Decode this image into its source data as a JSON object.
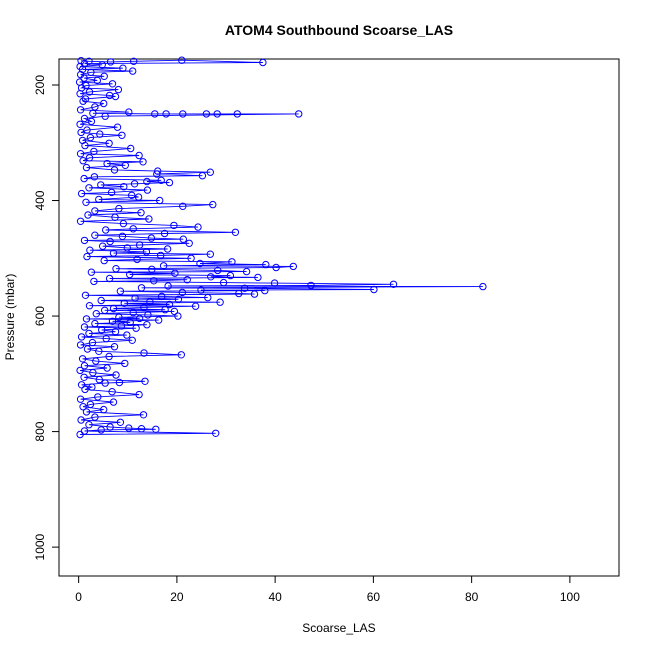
{
  "chart_data": {
    "type": "line",
    "title": "ATOM4 Southbound Scoarse_LAS",
    "xlabel": "Scoarse_LAS",
    "ylabel": "Pressure (mbar)",
    "xlim": [
      -4,
      110
    ],
    "ylim": [
      1050,
      155
    ],
    "y_reversed": true,
    "x_ticks": [
      0,
      20,
      40,
      60,
      80,
      100
    ],
    "y_ticks": [
      200,
      400,
      600,
      800,
      1000
    ],
    "grid": false,
    "legend": "none",
    "series": [
      {
        "style": "points-and-lines",
        "marker": "open-circle",
        "color": "#0000ff",
        "points": [
          [
            0.5,
            158
          ],
          [
            2.1,
            159
          ],
          [
            6.5,
            160
          ],
          [
            11.2,
            159
          ],
          [
            21,
            157
          ],
          [
            37.5,
            161
          ],
          [
            1.2,
            163
          ],
          [
            4.8,
            165
          ],
          [
            0.3,
            168
          ],
          [
            9,
            171
          ],
          [
            0.8,
            173
          ],
          [
            11,
            176
          ],
          [
            2.5,
            178
          ],
          [
            0.4,
            182
          ],
          [
            5.2,
            185
          ],
          [
            1.1,
            188
          ],
          [
            3.8,
            192
          ],
          [
            0.2,
            195
          ],
          [
            6.9,
            198
          ],
          [
            1.5,
            201
          ],
          [
            0.6,
            205
          ],
          [
            8.1,
            208
          ],
          [
            2.2,
            212
          ],
          [
            0.3,
            215
          ],
          [
            6.3,
            218
          ],
          [
            7.5,
            220
          ],
          [
            1.4,
            224
          ],
          [
            0.9,
            228
          ],
          [
            5.1,
            232
          ],
          [
            3.3,
            238
          ],
          [
            0.4,
            243
          ],
          [
            10.2,
            247
          ],
          [
            2.9,
            249
          ],
          [
            15.5,
            250
          ],
          [
            17.8,
            250
          ],
          [
            21.2,
            250
          ],
          [
            26,
            250
          ],
          [
            28.2,
            250
          ],
          [
            32.3,
            250
          ],
          [
            44.8,
            250
          ],
          [
            5.4,
            254
          ],
          [
            1.2,
            258
          ],
          [
            2.6,
            263
          ],
          [
            0.3,
            268
          ],
          [
            7.9,
            273
          ],
          [
            1.7,
            278
          ],
          [
            0.5,
            282
          ],
          [
            4.3,
            285
          ],
          [
            8.8,
            287
          ],
          [
            2.4,
            291
          ],
          [
            0.8,
            296
          ],
          [
            6.2,
            301
          ],
          [
            1.3,
            305
          ],
          [
            10.6,
            310
          ],
          [
            3.1,
            315
          ],
          [
            0.4,
            319
          ],
          [
            12.3,
            322
          ],
          [
            2.2,
            326
          ],
          [
            0.9,
            331
          ],
          [
            13.1,
            333
          ],
          [
            5.8,
            336
          ],
          [
            9.5,
            339
          ],
          [
            1.6,
            343
          ],
          [
            7.3,
            347
          ],
          [
            16.1,
            349
          ],
          [
            26.8,
            351
          ],
          [
            15.9,
            354
          ],
          [
            25.2,
            357
          ],
          [
            3.2,
            359
          ],
          [
            1.1,
            362
          ],
          [
            16.8,
            365
          ],
          [
            13.9,
            367
          ],
          [
            18.5,
            369
          ],
          [
            11.4,
            371
          ],
          [
            4.5,
            373
          ],
          [
            9.2,
            376
          ],
          [
            2.1,
            378
          ],
          [
            14,
            382
          ],
          [
            6.7,
            386
          ],
          [
            0.6,
            388
          ],
          [
            10.8,
            391
          ],
          [
            12.2,
            394
          ],
          [
            4.1,
            398
          ],
          [
            16.5,
            400
          ],
          [
            1.5,
            403
          ],
          [
            27.3,
            407
          ],
          [
            21.2,
            410
          ],
          [
            8.2,
            414
          ],
          [
            3.3,
            418
          ],
          [
            12.7,
            421
          ],
          [
            1.9,
            425
          ],
          [
            7.4,
            429
          ],
          [
            14.3,
            432
          ],
          [
            0.4,
            436
          ],
          [
            9.1,
            440
          ],
          [
            19.4,
            443
          ],
          [
            24.3,
            446
          ],
          [
            11.1,
            449
          ],
          [
            5.5,
            451
          ],
          [
            31.9,
            455
          ],
          [
            17.5,
            457
          ],
          [
            3.3,
            460
          ],
          [
            8.9,
            462
          ],
          [
            14.8,
            465
          ],
          [
            21.3,
            467
          ],
          [
            1.2,
            469
          ],
          [
            6.4,
            471
          ],
          [
            22.5,
            474
          ],
          [
            12.4,
            477
          ],
          [
            4.9,
            479
          ],
          [
            9.9,
            482
          ],
          [
            18.1,
            484
          ],
          [
            2.3,
            486
          ],
          [
            13.8,
            489
          ],
          [
            7.1,
            491
          ],
          [
            26.8,
            493
          ],
          [
            16.7,
            495
          ],
          [
            1.7,
            497
          ],
          [
            22.9,
            500
          ],
          [
            11.9,
            502
          ],
          [
            5.2,
            504
          ],
          [
            31.2,
            506
          ],
          [
            24.7,
            509
          ],
          [
            38.1,
            511
          ],
          [
            17.3,
            513
          ],
          [
            43.7,
            514
          ],
          [
            40.2,
            516
          ],
          [
            7.6,
            518
          ],
          [
            14.9,
            519
          ],
          [
            28.3,
            521
          ],
          [
            34.2,
            523
          ],
          [
            2.6,
            524
          ],
          [
            19.6,
            526
          ],
          [
            10.4,
            528
          ],
          [
            30.9,
            530
          ],
          [
            26.9,
            532
          ],
          [
            36.5,
            533
          ],
          [
            6.3,
            535
          ],
          [
            22.1,
            537
          ],
          [
            15.3,
            539
          ],
          [
            3.1,
            540
          ],
          [
            29.5,
            542
          ],
          [
            39.9,
            543
          ],
          [
            64.1,
            545
          ],
          [
            47.3,
            547
          ],
          [
            18.2,
            548
          ],
          [
            82.3,
            549
          ],
          [
            12.8,
            551
          ],
          [
            33.8,
            552
          ],
          [
            60.1,
            554
          ],
          [
            24.9,
            555
          ],
          [
            37.9,
            556
          ],
          [
            8.5,
            557
          ],
          [
            21.1,
            559
          ],
          [
            32.6,
            561
          ],
          [
            35.8,
            562
          ],
          [
            1.4,
            564
          ],
          [
            16.9,
            566
          ],
          [
            26.3,
            568
          ],
          [
            11.5,
            569
          ],
          [
            20.3,
            571
          ],
          [
            4.6,
            573
          ],
          [
            14.5,
            575
          ],
          [
            28.8,
            576
          ],
          [
            9.3,
            578
          ],
          [
            18.5,
            580
          ],
          [
            2.2,
            582
          ],
          [
            23.8,
            583
          ],
          [
            13.3,
            585
          ],
          [
            7.1,
            587
          ],
          [
            17.6,
            589
          ],
          [
            5.3,
            590
          ],
          [
            19.5,
            592
          ],
          [
            11.1,
            594
          ],
          [
            3.6,
            596
          ],
          [
            14.1,
            598
          ],
          [
            20.2,
            600
          ],
          [
            8.2,
            602
          ],
          [
            12.4,
            604
          ],
          [
            1.6,
            605
          ],
          [
            16.3,
            607
          ],
          [
            6.9,
            609
          ],
          [
            10.5,
            611
          ],
          [
            3.3,
            613
          ],
          [
            13.9,
            615
          ],
          [
            8.7,
            617
          ],
          [
            1.2,
            619
          ],
          [
            11.7,
            621
          ],
          [
            4.7,
            624
          ],
          [
            7.5,
            627
          ],
          [
            2.1,
            630
          ],
          [
            9.8,
            633
          ],
          [
            0.6,
            636
          ],
          [
            5.6,
            639
          ],
          [
            10.9,
            642
          ],
          [
            2.8,
            646
          ],
          [
            0.4,
            650
          ],
          [
            7.3,
            653
          ],
          [
            1.8,
            657
          ],
          [
            4.1,
            661
          ],
          [
            13.3,
            664
          ],
          [
            20.9,
            667
          ],
          [
            6.2,
            670
          ],
          [
            0.8,
            674
          ],
          [
            3.5,
            678
          ],
          [
            9.4,
            682
          ],
          [
            1.2,
            686
          ],
          [
            5.8,
            690
          ],
          [
            0.3,
            694
          ],
          [
            2.9,
            698
          ],
          [
            7.6,
            702
          ],
          [
            1.1,
            706
          ],
          [
            4.2,
            710
          ],
          [
            13.5,
            713
          ],
          [
            8.3,
            715
          ],
          [
            5.4,
            716
          ],
          [
            0.6,
            719
          ],
          [
            2.7,
            723
          ],
          [
            1.3,
            727
          ],
          [
            6.8,
            731
          ],
          [
            12.3,
            736
          ],
          [
            3.9,
            740
          ],
          [
            0.4,
            744
          ],
          [
            7.1,
            749
          ],
          [
            2.4,
            753
          ],
          [
            0.9,
            757
          ],
          [
            5.1,
            762
          ],
          [
            1.6,
            766
          ],
          [
            13.2,
            771
          ],
          [
            3.3,
            775
          ],
          [
            0.5,
            780
          ],
          [
            8.5,
            784
          ],
          [
            2.1,
            788
          ],
          [
            6.4,
            792
          ],
          [
            10.2,
            794
          ],
          [
            12.8,
            795
          ],
          [
            15.7,
            796
          ],
          [
            4.6,
            797
          ],
          [
            1.2,
            799
          ],
          [
            27.9,
            803
          ],
          [
            0.3,
            805
          ]
        ]
      }
    ]
  }
}
